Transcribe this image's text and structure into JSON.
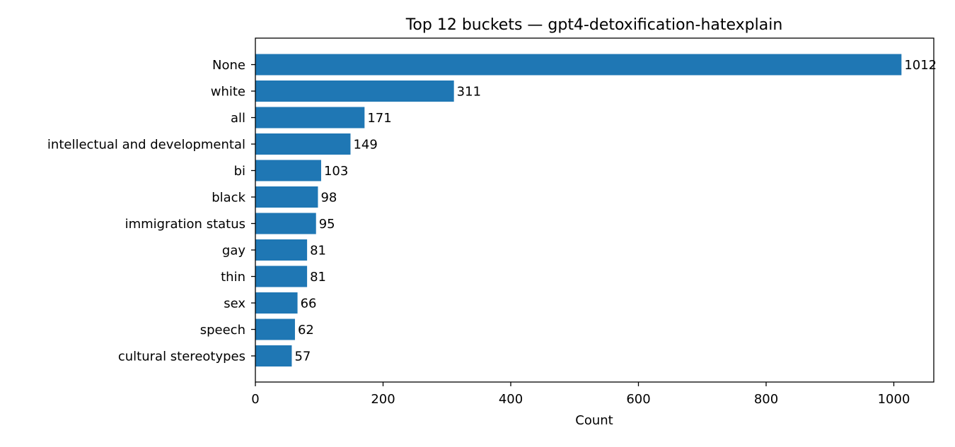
{
  "chart_data": {
    "type": "bar",
    "orientation": "horizontal",
    "title": "Top 12 buckets — gpt4-detoxification-hatexplain",
    "xlabel": "Count",
    "ylabel": "",
    "xlim": [
      0,
      1062.6
    ],
    "xticks": [
      0,
      200,
      400,
      600,
      800,
      1000
    ],
    "grid": false,
    "legend": "none",
    "bar_color": "#1f77b4",
    "categories": [
      "None",
      "white",
      "all",
      "intellectual and developmental",
      "bi",
      "black",
      "immigration status",
      "gay",
      "thin",
      "sex",
      "speech",
      "cultural stereotypes"
    ],
    "values": [
      1012,
      311,
      171,
      149,
      103,
      98,
      95,
      81,
      81,
      66,
      62,
      57
    ]
  }
}
